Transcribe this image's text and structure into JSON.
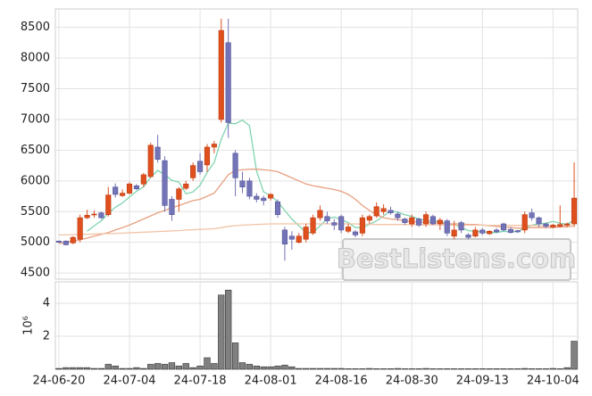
{
  "chart_data": [
    {
      "type": "candlestick",
      "up_color": "#e0501f",
      "down_color": "#7373b8",
      "open": [
        5020,
        5020,
        4990,
        5050,
        5400,
        5450,
        5480,
        5450,
        5900,
        5760,
        5800,
        5920,
        5950,
        6070,
        6550,
        6330,
        5700,
        5700,
        5880,
        6050,
        6320,
        6260,
        6550,
        7000,
        8250,
        6450,
        6000,
        6000,
        5750,
        5720,
        5720,
        5660,
        5200,
        5100,
        5000,
        5050,
        5150,
        5400,
        5420,
        5320,
        5420,
        5180,
        5170,
        5150,
        5360,
        5430,
        5500,
        5520,
        5460,
        5380,
        5300,
        5380,
        5300,
        5420,
        5300,
        5350,
        5100,
        5320,
        5120,
        5100,
        5200,
        5140,
        5200,
        5300,
        5210,
        5190,
        5200,
        5480,
        5400,
        5300,
        5250,
        5260,
        5280,
        5300
      ],
      "high": [
        5030,
        5030,
        5100,
        5450,
        5530,
        5520,
        5500,
        5900,
        5960,
        5860,
        5980,
        5950,
        6130,
        6620,
        6750,
        6400,
        5750,
        5900,
        6000,
        6300,
        6450,
        6600,
        6650,
        8640,
        8640,
        6500,
        6150,
        6050,
        5800,
        5760,
        5800,
        5700,
        5250,
        5180,
        5150,
        5300,
        5450,
        5600,
        5500,
        5380,
        5450,
        5300,
        5200,
        5450,
        5450,
        5650,
        5620,
        5580,
        5500,
        5400,
        5450,
        5400,
        5500,
        5450,
        5400,
        5380,
        5350,
        5350,
        5150,
        5250,
        5230,
        5200,
        5230,
        5320,
        5250,
        5200,
        5500,
        5550,
        5420,
        5320,
        5300,
        5600,
        5320,
        6300
      ],
      "low": [
        4990,
        4950,
        4970,
        5000,
        5380,
        5400,
        5380,
        5420,
        5730,
        5740,
        5780,
        5850,
        5900,
        6050,
        6300,
        5500,
        5350,
        5500,
        5850,
        6000,
        6100,
        6150,
        6450,
        6950,
        6700,
        5750,
        5800,
        5700,
        5650,
        5600,
        5680,
        5400,
        4700,
        4880,
        4980,
        5000,
        5120,
        5350,
        5300,
        5200,
        5150,
        5150,
        5080,
        5100,
        5300,
        5400,
        5450,
        5450,
        5350,
        5280,
        5250,
        5250,
        5250,
        5280,
        5200,
        5100,
        5050,
        5150,
        5050,
        5080,
        5120,
        5120,
        5150,
        5180,
        5140,
        5150,
        5150,
        5350,
        5250,
        5230,
        5230,
        5240,
        5250,
        5250
      ],
      "close": [
        5000,
        4960,
        5080,
        5400,
        5440,
        5460,
        5400,
        5770,
        5780,
        5800,
        5950,
        5870,
        6100,
        6580,
        6350,
        5600,
        5450,
        5870,
        5950,
        6250,
        6150,
        6550,
        6600,
        8450,
        6950,
        6050,
        5900,
        5750,
        5700,
        5680,
        5780,
        5450,
        4970,
        5050,
        5100,
        5250,
        5400,
        5520,
        5350,
        5280,
        5200,
        5250,
        5120,
        5400,
        5420,
        5580,
        5550,
        5480,
        5400,
        5320,
        5400,
        5280,
        5450,
        5300,
        5360,
        5150,
        5200,
        5200,
        5080,
        5200,
        5150,
        5180,
        5170,
        5200,
        5160,
        5170,
        5450,
        5400,
        5300,
        5260,
        5280,
        5290,
        5300,
        5720
      ],
      "series": [
        {
          "color": "#7fd4b0",
          "values": [
            null,
            null,
            null,
            null,
            5180,
            5270,
            5350,
            5470,
            5570,
            5640,
            5740,
            5830,
            5900,
            6060,
            6170,
            6100,
            6010,
            5980,
            5790,
            5820,
            5930,
            6140,
            6300,
            6680,
            6940,
            6930,
            6990,
            6900,
            6160,
            5820,
            5760,
            5660,
            5520,
            5380,
            5270,
            5160,
            5160,
            5270,
            5380,
            5410,
            5370,
            5320,
            5240,
            5240,
            5290,
            5350,
            5430,
            5510,
            5490,
            5450,
            5420,
            5380,
            5350,
            5350,
            5340,
            5300,
            5290,
            5240,
            5190,
            5180,
            5170,
            5160,
            5160,
            5180,
            5170,
            5180,
            5230,
            5280,
            5300,
            5310,
            5340,
            5310,
            5290,
            5370
          ]
        },
        {
          "color": "#e8a080",
          "values": [
            4980,
            5000,
            5020,
            5040,
            5070,
            5100,
            5130,
            5160,
            5200,
            5240,
            5280,
            5330,
            5380,
            5430,
            5480,
            5520,
            5560,
            5600,
            5640,
            5680,
            5700,
            5750,
            5800,
            5950,
            6100,
            6170,
            6180,
            6190,
            6190,
            6180,
            6170,
            6150,
            6100,
            6050,
            6000,
            5950,
            5920,
            5900,
            5880,
            5860,
            5830,
            5780,
            5700,
            5600,
            5520,
            5450,
            5400,
            5380,
            5370,
            5350,
            5340,
            5330,
            5320,
            5320,
            5310,
            5300,
            5300,
            5300,
            5290,
            5290,
            5280,
            5270,
            5260,
            5250,
            5240,
            5230,
            5230,
            5240,
            5240,
            5240,
            5240,
            5250,
            5250,
            5270
          ]
        },
        {
          "color": "#f2c3a6",
          "values": [
            5120,
            5120,
            5125,
            5130,
            5130,
            5135,
            5140,
            5140,
            5145,
            5150,
            5155,
            5160,
            5165,
            5170,
            5175,
            5180,
            5185,
            5190,
            5200,
            5205,
            5210,
            5215,
            5220,
            5240,
            5260,
            5270,
            5280,
            5285,
            5290,
            5295,
            5300,
            5300,
            5300,
            5300,
            5300,
            5300,
            5300,
            5300,
            5300,
            5300,
            5300,
            5300,
            5300,
            5295,
            5295,
            5290,
            5290,
            5290,
            5290,
            5290,
            5290,
            5285,
            5285,
            5285,
            5285,
            5280,
            5280,
            5280,
            5280,
            5280,
            5280,
            5275,
            5275,
            5275,
            5275,
            5275,
            5275,
            5275,
            5270,
            5270,
            5270,
            5270,
            5270,
            5270
          ]
        }
      ],
      "ylim": [
        4400,
        8800
      ],
      "yticks": [
        4500,
        5000,
        5500,
        6000,
        6500,
        7000,
        7500,
        8000,
        8500
      ],
      "grid": true,
      "watermark": "BestListens.com"
    },
    {
      "type": "bar",
      "color": "#808080",
      "ylabel": "10⁶",
      "categories": [
        "24-06-20",
        null,
        null,
        null,
        null,
        null,
        null,
        null,
        null,
        null,
        "24-07-04",
        null,
        null,
        null,
        null,
        null,
        null,
        null,
        null,
        null,
        "24-07-18",
        null,
        null,
        null,
        null,
        null,
        null,
        null,
        null,
        null,
        "24-08-01",
        null,
        null,
        null,
        null,
        null,
        null,
        null,
        null,
        null,
        "24-08-16",
        null,
        null,
        null,
        null,
        null,
        null,
        null,
        null,
        null,
        "24-08-30",
        null,
        null,
        null,
        null,
        null,
        null,
        null,
        null,
        null,
        "24-09-13",
        null,
        null,
        null,
        null,
        null,
        null,
        null,
        null,
        null,
        "24-10-04",
        null,
        null,
        null
      ],
      "values": [
        0.05,
        0.1,
        0.1,
        0.1,
        0.1,
        0.05,
        0.05,
        0.3,
        0.2,
        0.05,
        0.05,
        0.1,
        0.05,
        0.3,
        0.35,
        0.3,
        0.4,
        0.2,
        0.35,
        0.1,
        0.2,
        0.7,
        0.35,
        4.5,
        4.8,
        1.6,
        0.4,
        0.3,
        0.2,
        0.15,
        0.15,
        0.2,
        0.25,
        0.15,
        0.05,
        0.05,
        0.05,
        0.05,
        0.05,
        0.05,
        0.05,
        0.03,
        0.03,
        0.03,
        0.05,
        0.03,
        0.03,
        0.03,
        0.05,
        0.03,
        0.03,
        0.03,
        0.05,
        0.03,
        0.03,
        0.03,
        0.03,
        0.03,
        0.03,
        0.03,
        0.03,
        0.03,
        0.03,
        0.03,
        0.03,
        0.03,
        0.05,
        0.03,
        0.03,
        0.03,
        0.05,
        0.03,
        0.1,
        1.7
      ],
      "ylim": [
        0,
        5.3
      ],
      "yticks": [
        2,
        4
      ],
      "grid": true
    }
  ]
}
